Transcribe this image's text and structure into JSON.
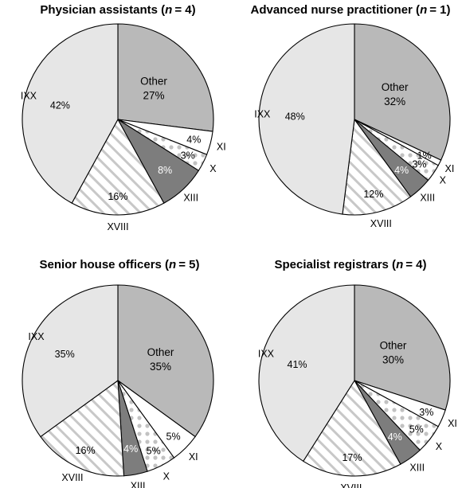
{
  "colors": {
    "other": "#b9b9b9",
    "ixx": "#e6e6e6",
    "xiii": "#7d7d7d",
    "white": "#ffffff",
    "hatch": "#c8c8c8",
    "dots": "#c2c2c2",
    "outline": "#000000"
  },
  "chart_data": [
    {
      "type": "pie",
      "title": "Physician assistants (n = 4)",
      "title_parts": {
        "prefix": "Physician assistants (",
        "n_symbol": "n",
        "n_value": "= 4)"
      },
      "slices": [
        {
          "name": "Other",
          "value": 27,
          "label": "27%",
          "fill": "other"
        },
        {
          "name": "XI",
          "value": 4,
          "label": "4%",
          "fill": "white"
        },
        {
          "name": "X",
          "value": 3,
          "label": "3%",
          "fill": "dots"
        },
        {
          "name": "XIII",
          "value": 8,
          "label": "8%",
          "fill": "xiii"
        },
        {
          "name": "XVIII",
          "value": 16,
          "label": "16%",
          "fill": "hatch"
        },
        {
          "name": "IXX",
          "value": 42,
          "label": "42%",
          "fill": "ixx"
        }
      ]
    },
    {
      "type": "pie",
      "title": "Advanced nurse practitioner (n = 1)",
      "title_parts": {
        "prefix": "Advanced nurse practitioner (",
        "n_symbol": "n",
        "n_value": "= 1)"
      },
      "slices": [
        {
          "name": "Other",
          "value": 32,
          "label": "32%",
          "fill": "other"
        },
        {
          "name": "XI",
          "value": 1,
          "label": "1%",
          "fill": "white"
        },
        {
          "name": "X",
          "value": 3,
          "label": "3%",
          "fill": "dots"
        },
        {
          "name": "XIII",
          "value": 4,
          "label": "4%",
          "fill": "xiii"
        },
        {
          "name": "XVIII",
          "value": 12,
          "label": "12%",
          "fill": "hatch"
        },
        {
          "name": "IXX",
          "value": 48,
          "label": "48%",
          "fill": "ixx"
        }
      ]
    },
    {
      "type": "pie",
      "title": "Senior house officers (n = 5)",
      "title_parts": {
        "prefix": "Senior house officers (",
        "n_symbol": "n",
        "n_value": "= 5)"
      },
      "slices": [
        {
          "name": "Other",
          "value": 35,
          "label": "35%",
          "fill": "other"
        },
        {
          "name": "XI",
          "value": 5,
          "label": "5%",
          "fill": "white"
        },
        {
          "name": "X",
          "value": 5,
          "label": "5%",
          "fill": "dots"
        },
        {
          "name": "XIII",
          "value": 4,
          "label": "4%",
          "fill": "xiii"
        },
        {
          "name": "XVIII",
          "value": 16,
          "label": "16%",
          "fill": "hatch"
        },
        {
          "name": "IXX",
          "value": 35,
          "label": "35%",
          "fill": "ixx"
        }
      ]
    },
    {
      "type": "pie",
      "title": "Specialist registrars (n = 4)",
      "title_parts": {
        "prefix": "Specialist registrars (",
        "n_symbol": "n",
        "n_value": "= 4)"
      },
      "slices": [
        {
          "name": "Other",
          "value": 30,
          "label": "30%",
          "fill": "other"
        },
        {
          "name": "XI",
          "value": 3,
          "label": "3%",
          "fill": "white"
        },
        {
          "name": "X",
          "value": 5,
          "label": "5%",
          "fill": "dots"
        },
        {
          "name": "XIII",
          "value": 4,
          "label": "4%",
          "fill": "xiii"
        },
        {
          "name": "XVIII",
          "value": 17,
          "label": "17%",
          "fill": "hatch"
        },
        {
          "name": "IXX",
          "value": 41,
          "label": "41%",
          "fill": "ixx"
        }
      ]
    }
  ]
}
